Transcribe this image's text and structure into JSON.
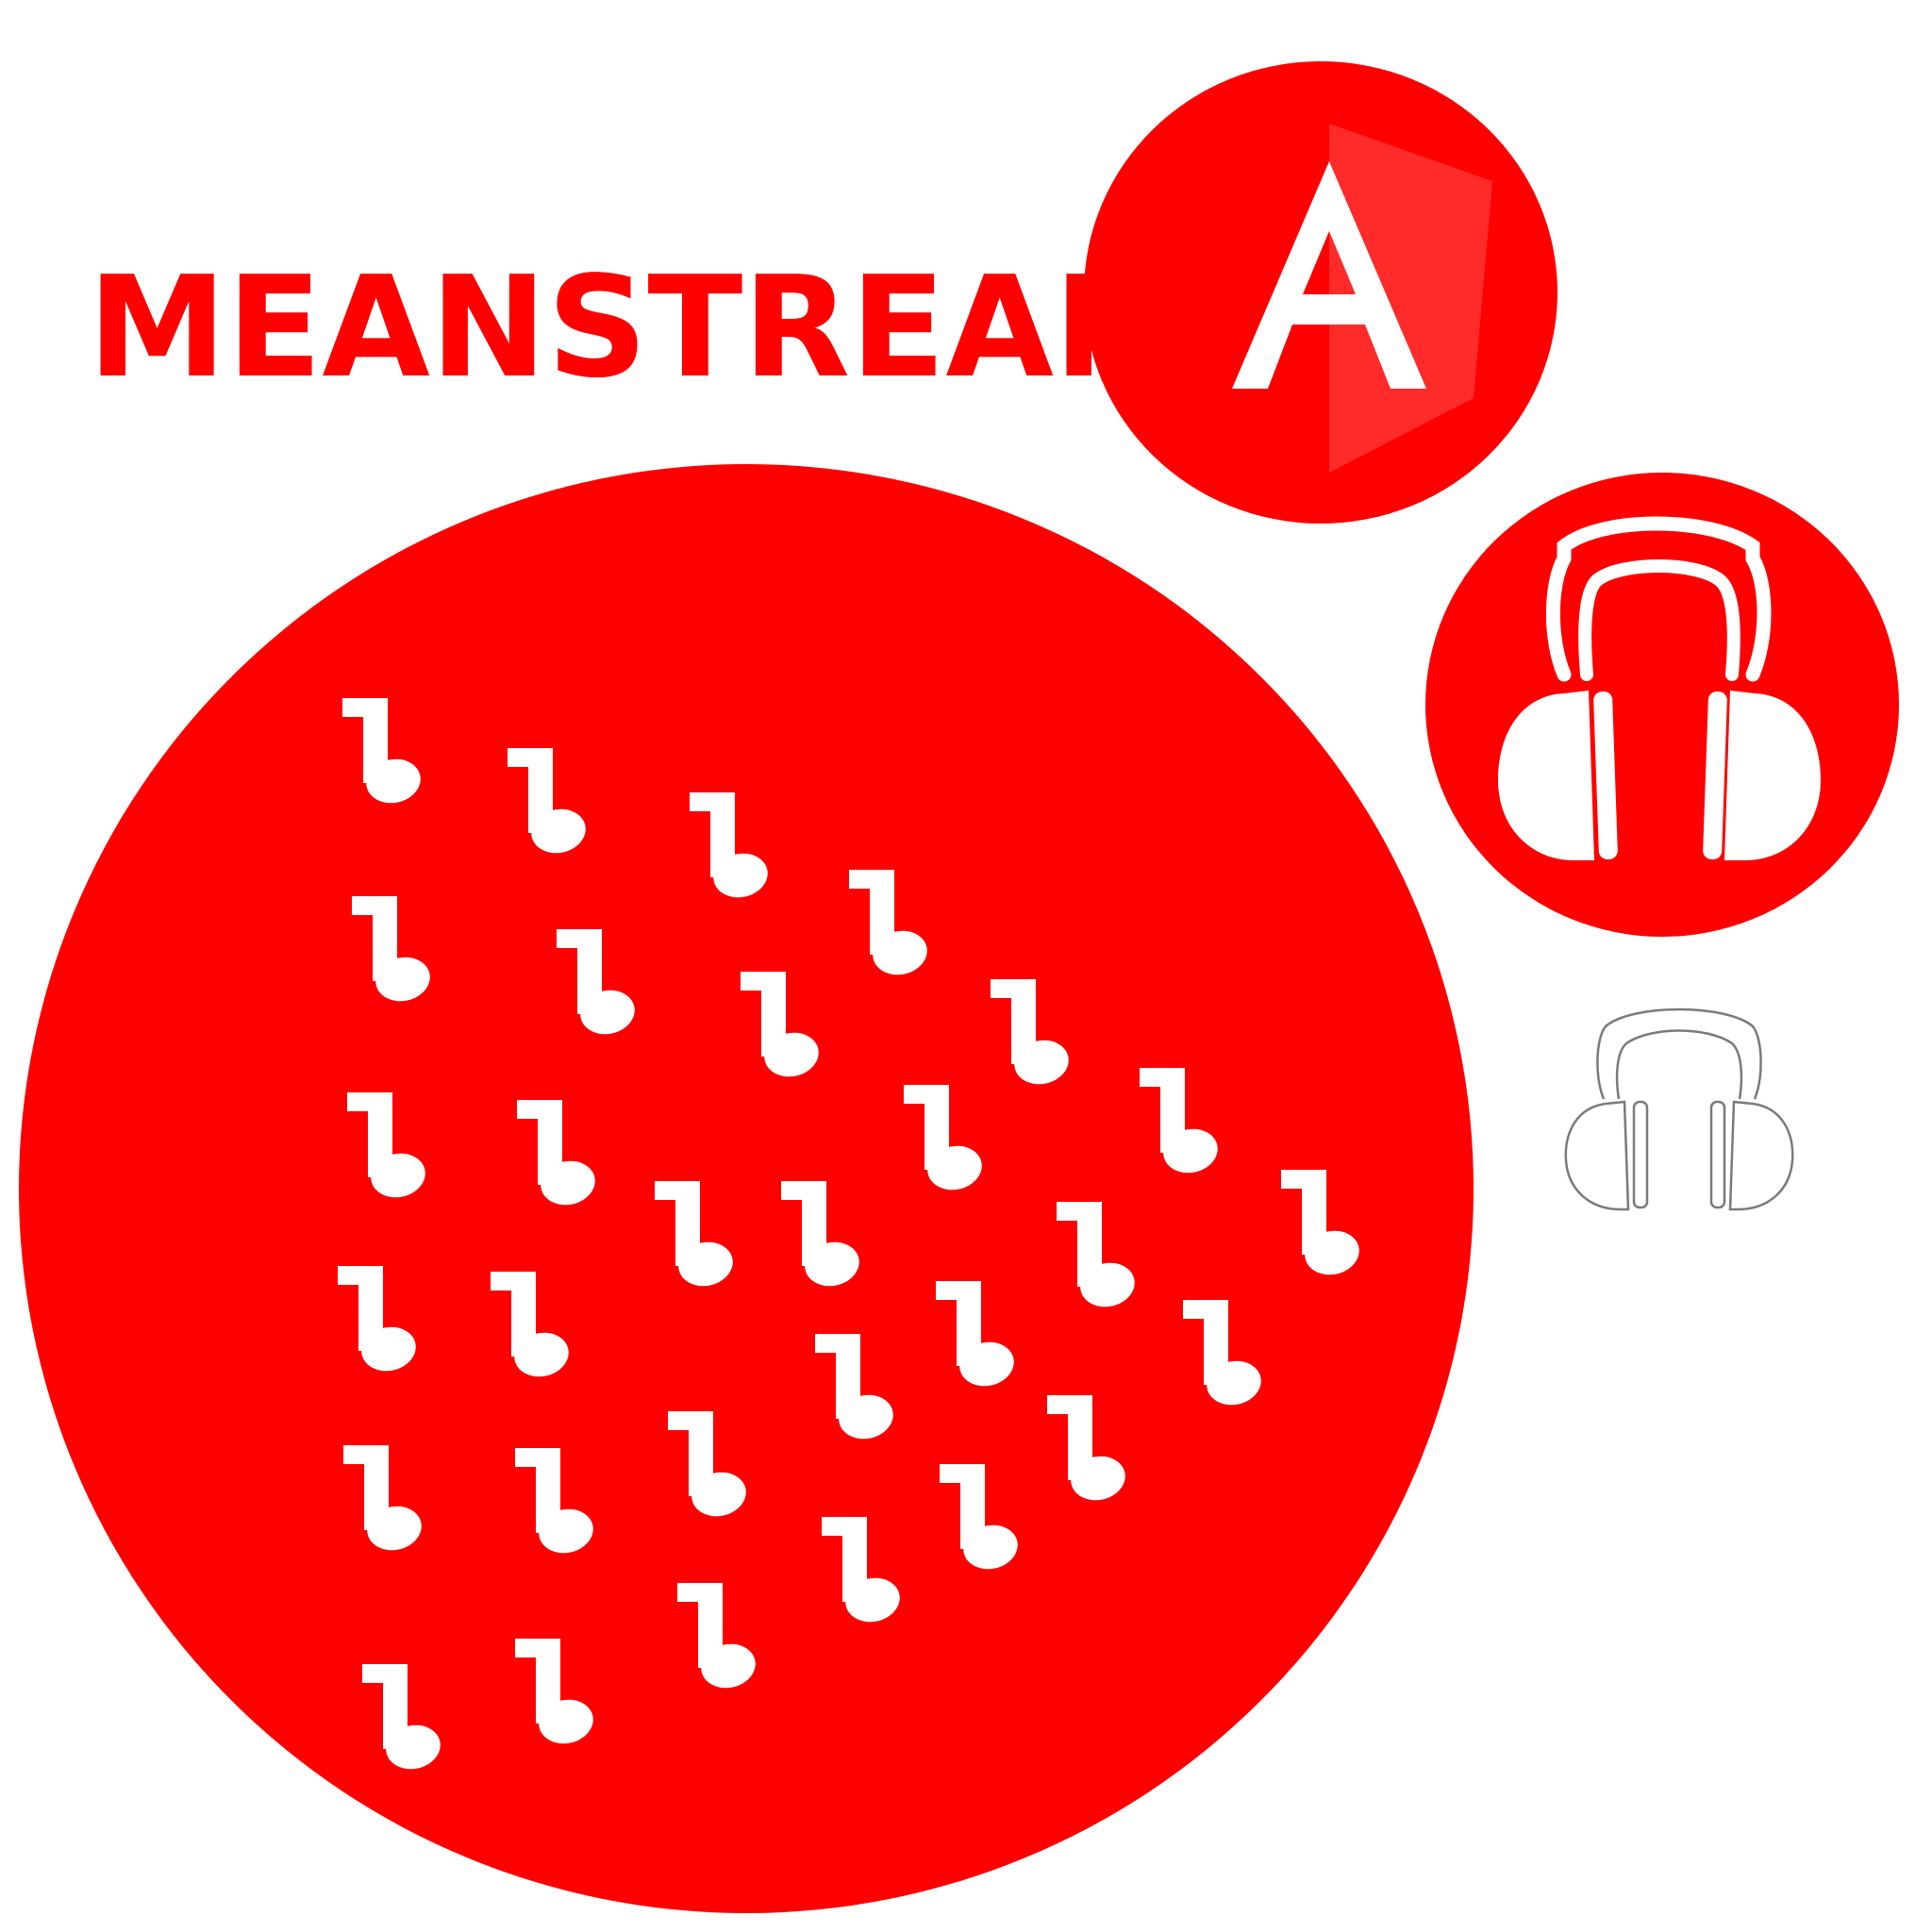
{
  "brand": {
    "title": "MEANSTREAM",
    "logo_letter": "A"
  },
  "colors": {
    "brand_red": "#ff0000",
    "logo_shade_red": "#ff2a2a",
    "icon_white": "#ffffff",
    "outline_gray": "#7a7a7a"
  },
  "icons": {
    "logo": "letter-a-logo-icon",
    "headphones_filled": "headphones-icon",
    "headphones_outline": "headphones-outline-icon",
    "note": "music-note-icon"
  }
}
